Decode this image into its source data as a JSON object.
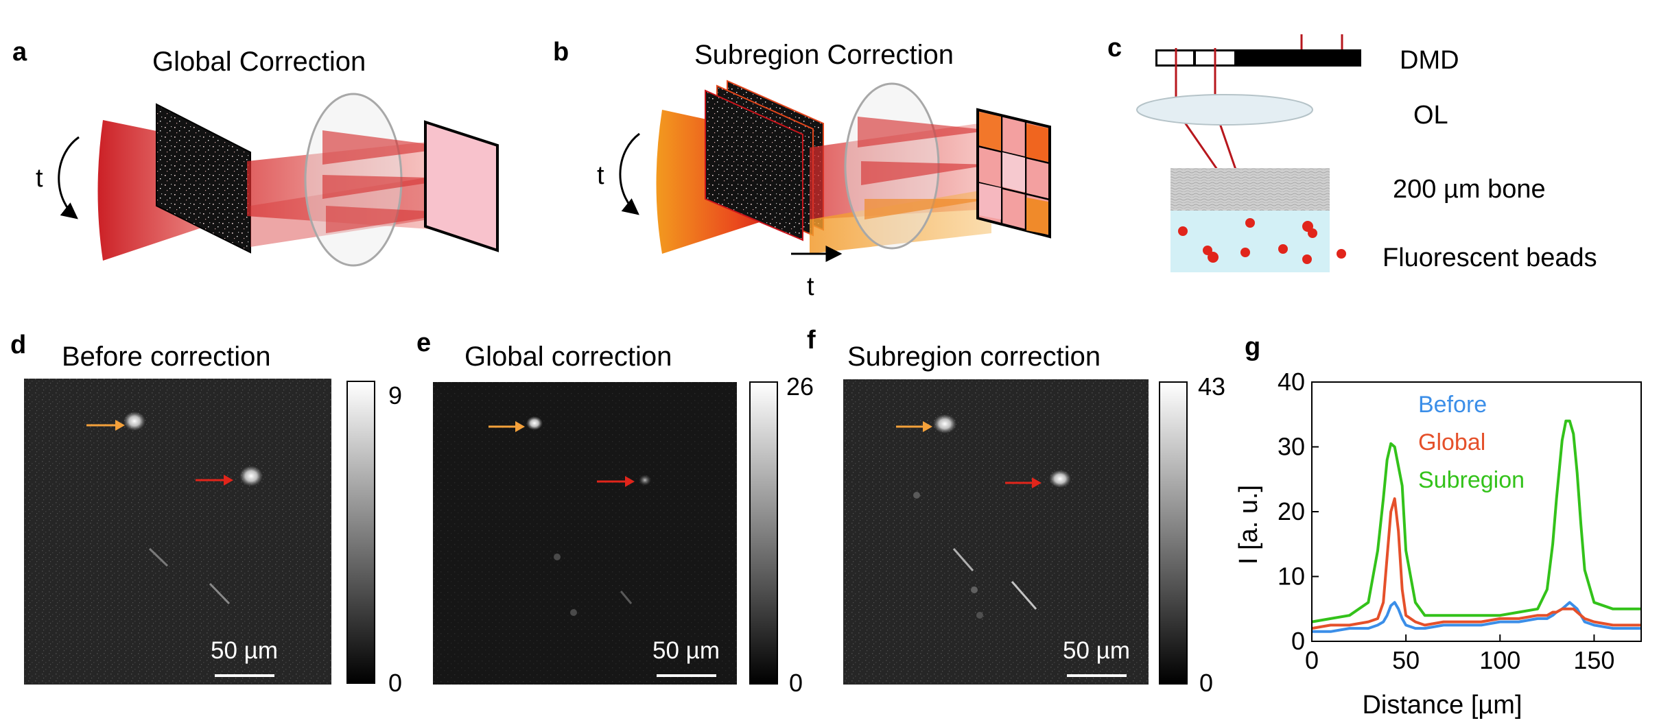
{
  "panel_labels": [
    "a",
    "b",
    "c",
    "d",
    "e",
    "f",
    "g"
  ],
  "panel_a": {
    "title": "Global Correction",
    "time_label": "t"
  },
  "panel_b": {
    "title": "Subregion Correction",
    "time_label": "t",
    "time_label_2": "t"
  },
  "panel_c": {
    "labels": [
      "DMD",
      "OL",
      "200 µm bone",
      "Fluorescent beads"
    ]
  },
  "images": [
    {
      "title": "Before correction",
      "colorbar_max": "9",
      "colorbar_min": "0",
      "scale_bar": "50 µm"
    },
    {
      "title": "Global correction",
      "colorbar_max": "26",
      "colorbar_min": "0",
      "scale_bar": "50 µm"
    },
    {
      "title": "Subregion correction",
      "colorbar_max": "43",
      "colorbar_min": "0",
      "scale_bar": "50 µm"
    }
  ],
  "colors": {
    "orange_arrow": "#f4a13b",
    "red_arrow": "#e1251b",
    "before": "#3b8ee8",
    "global": "#e5502a",
    "subregion": "#33c21a"
  },
  "chart_data": {
    "type": "line",
    "xlabel": "Distance [µm]",
    "ylabel": "I [a. u.]",
    "xlim": [
      0,
      175
    ],
    "ylim": [
      0,
      40
    ],
    "xticks": [
      0,
      50,
      100,
      150
    ],
    "yticks": [
      0,
      10,
      20,
      30,
      40
    ],
    "legend_position": "top-center",
    "x": [
      0,
      10,
      20,
      30,
      35,
      38,
      40,
      42,
      44,
      46,
      48,
      50,
      55,
      60,
      70,
      80,
      90,
      100,
      110,
      120,
      125,
      128,
      130,
      133,
      135,
      137,
      139,
      141,
      143,
      145,
      150,
      160,
      170,
      175
    ],
    "series": [
      {
        "name": "Before",
        "values": [
          1.5,
          1.5,
          2,
          2,
          2.5,
          3,
          4,
          5.5,
          6,
          5,
          3.5,
          2.5,
          2,
          2,
          2.5,
          2.5,
          2.5,
          3,
          3,
          3.5,
          3.5,
          4,
          4.5,
          5,
          5.5,
          6,
          5.5,
          5,
          4,
          3,
          2.5,
          2,
          2,
          2
        ]
      },
      {
        "name": "Global",
        "values": [
          2,
          2.5,
          2.5,
          3,
          3.5,
          6,
          13,
          20,
          22,
          17,
          8,
          4,
          3,
          2.5,
          3,
          3,
          3,
          3.5,
          3.5,
          4,
          4,
          4.5,
          4.5,
          5,
          5,
          5,
          5,
          4.5,
          4,
          3.5,
          3,
          2.5,
          2.5,
          2.5
        ]
      },
      {
        "name": "Subregion",
        "values": [
          3,
          3.5,
          4,
          6,
          14,
          22,
          28,
          30.5,
          30,
          27,
          24,
          14,
          6,
          4,
          4,
          4,
          4,
          4,
          4.5,
          5,
          8,
          15,
          22,
          31,
          34,
          34,
          32,
          26,
          18,
          11,
          6,
          5,
          5,
          5
        ]
      }
    ]
  }
}
